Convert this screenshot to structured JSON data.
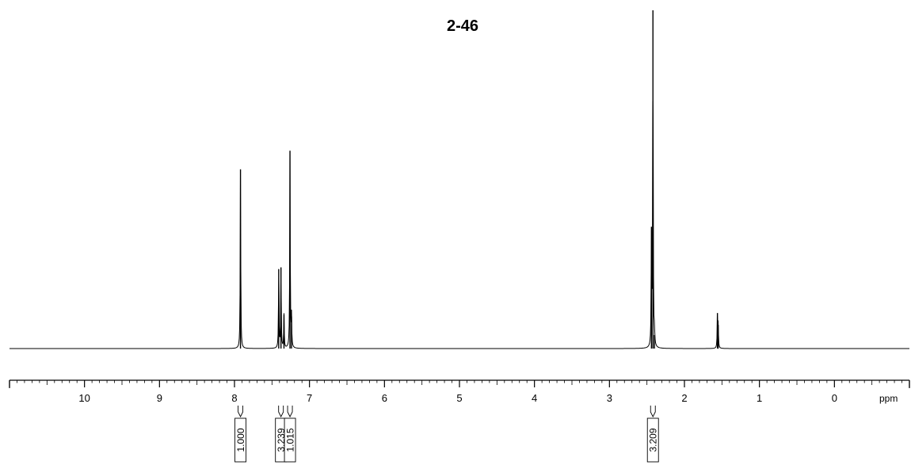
{
  "chart_data": {
    "type": "line",
    "title": "2-46",
    "xlabel": "ppm",
    "xlim": [
      11.0,
      -1.0
    ],
    "x_direction": "reversed",
    "ylim": [
      0,
      1.0
    ],
    "grid": false,
    "major_ticks": [
      10,
      9,
      8,
      7,
      6,
      5,
      4,
      3,
      2,
      1,
      0
    ],
    "tick_labels": [
      "10",
      "9",
      "8",
      "7",
      "6",
      "5",
      "4",
      "3",
      "2",
      "1",
      "0"
    ],
    "peaks": [
      {
        "x": 7.92,
        "y": 0.53
      },
      {
        "x": 7.41,
        "y": 0.235
      },
      {
        "x": 7.38,
        "y": 0.24
      },
      {
        "x": 7.34,
        "y": 0.1
      },
      {
        "x": 7.26,
        "y": 0.585
      },
      {
        "x": 7.24,
        "y": 0.095
      },
      {
        "x": 2.44,
        "y": 0.36
      },
      {
        "x": 2.42,
        "y": 1.0
      },
      {
        "x": 2.4,
        "y": 0.04
      },
      {
        "x": 1.56,
        "y": 0.105
      },
      {
        "x": 1.55,
        "y": 0.07
      }
    ],
    "integrals": [
      {
        "x": 7.92,
        "label": "1.000"
      },
      {
        "x": 7.38,
        "label": "3.239"
      },
      {
        "x": 7.26,
        "label": "1.015"
      },
      {
        "x": 2.42,
        "label": "3.209"
      }
    ]
  }
}
